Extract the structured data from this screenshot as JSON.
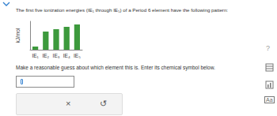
{
  "header": "The first five ionization energies (IE₁ through IE₅) of a Period 6 element have the following pattern:",
  "chart_data": {
    "type": "bar",
    "categories": [
      "IE₁",
      "IE₂",
      "IE₃",
      "IE₄",
      "IE₅"
    ],
    "values": [
      4,
      23,
      26,
      29,
      32
    ],
    "color": "#3d9a3d",
    "ylabel": "kJ/mol",
    "ylim": [
      0,
      36
    ],
    "tick_labels": "x",
    "grid": false
  },
  "prompt": "Make a reasonable guess about which element this is. Enter its chemical symbol below.",
  "buttons": [
    "×",
    "↺"
  ],
  "side_icons": [
    "?",
    "Aa"
  ]
}
